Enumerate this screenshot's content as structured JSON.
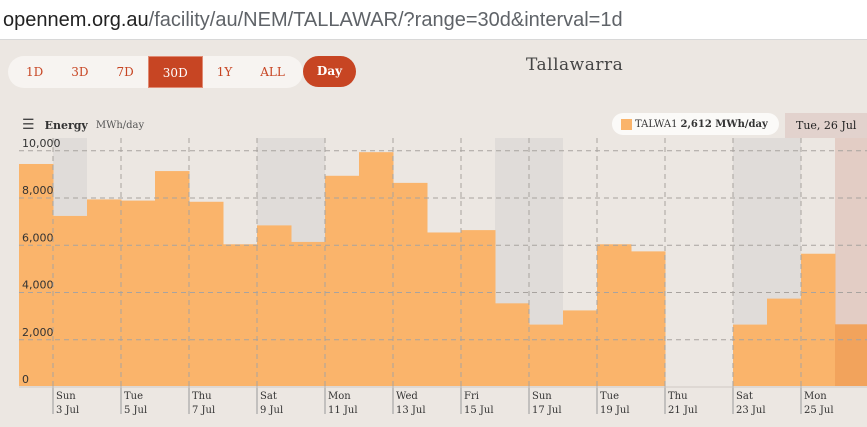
{
  "url": {
    "domain": "opennem.org.au",
    "path": "/facility/au/NEM/TALLAWAR/?range=30d&interval=1d"
  },
  "range_buttons": [
    "1D",
    "3D",
    "7D",
    "30D",
    "1Y",
    "ALL"
  ],
  "active_range": "30D",
  "interval_label": "Day",
  "facility_title": "Tallawarra",
  "energy_label": "Energy",
  "energy_unit": "MWh/day",
  "legend": {
    "name": "TALWA1",
    "value": "2,612 MWh/day",
    "color": "#fab46b"
  },
  "hover_date": "Tue, 26 Jul",
  "colors": {
    "accent": "#c74523",
    "bar": "#fab46b",
    "weekend": "#e0dcd9",
    "background": "#ece7e2"
  },
  "chart_data": {
    "type": "bar",
    "series": [
      {
        "name": "TALWA1",
        "values": [
          9400,
          7200,
          7900,
          7850,
          9100,
          7800,
          6000,
          6800,
          6100,
          8900,
          9900,
          8600,
          6500,
          6600,
          3500,
          2600,
          3200,
          6000,
          5700,
          0,
          0,
          2600,
          3700,
          5600,
          2612
        ]
      }
    ],
    "ylim": [
      0,
      10500
    ],
    "yticks": [
      "0",
      "2,000",
      "4,000",
      "6,000",
      "8,000",
      "10,000"
    ],
    "ytick_values": [
      0,
      2000,
      4000,
      6000,
      8000,
      10000
    ],
    "xticks": [
      {
        "day": "Sun",
        "date": "3 Jul"
      },
      {
        "day": "Tue",
        "date": "5 Jul"
      },
      {
        "day": "Thu",
        "date": "7 Jul"
      },
      {
        "day": "Sat",
        "date": "9 Jul"
      },
      {
        "day": "Mon",
        "date": "11 Jul"
      },
      {
        "day": "Wed",
        "date": "13 Jul"
      },
      {
        "day": "Fri",
        "date": "15 Jul"
      },
      {
        "day": "Sun",
        "date": "17 Jul"
      },
      {
        "day": "Tue",
        "date": "19 Jul"
      },
      {
        "day": "Thu",
        "date": "21 Jul"
      },
      {
        "day": "Sat",
        "date": "23 Jul"
      },
      {
        "day": "Mon",
        "date": "25 Jul"
      }
    ],
    "weekend_day_indices": [
      1,
      7,
      8,
      14,
      15,
      21,
      22
    ],
    "highlight_day_index": 24,
    "grid": true
  }
}
